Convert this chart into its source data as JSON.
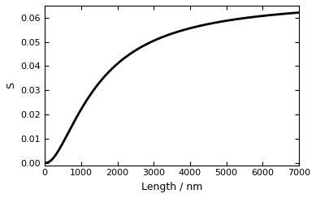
{
  "xlim": [
    0,
    7000
  ],
  "ylim": [
    -0.001,
    0.065
  ],
  "xticks": [
    0,
    1000,
    2000,
    3000,
    4000,
    5000,
    6000,
    7000
  ],
  "yticks": [
    0.0,
    0.01,
    0.02,
    0.03,
    0.04,
    0.05,
    0.06
  ],
  "xlabel": "Length / nm",
  "ylabel": "S",
  "line_color": "#000000",
  "line_width": 2.0,
  "background_color": "#ffffff",
  "S_max": 0.0655,
  "curve_c": 3.8e-07,
  "curve_n": 1.45,
  "curve_L0": 85.0,
  "figwidth": 3.89,
  "figheight": 2.44,
  "dpi": 100
}
